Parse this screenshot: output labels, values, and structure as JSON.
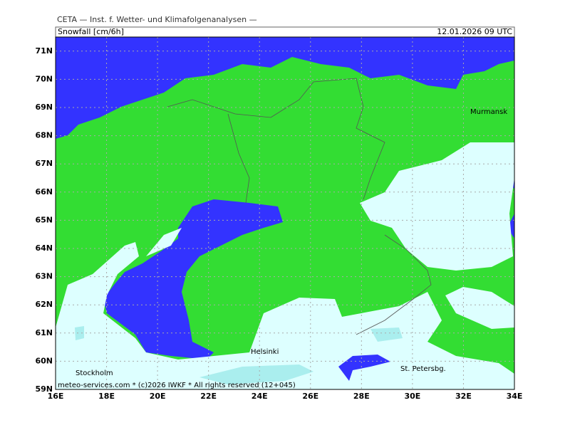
{
  "header": {
    "title": "CETA — Inst. f. Wetter- und Klimafolgenanalysen —",
    "parameter": "Snowfall [cm/6h]",
    "valid_time": "12.01.2026 09 UTC"
  },
  "map": {
    "xlim": [
      16,
      34
    ],
    "ylim": [
      59,
      71.5
    ],
    "xticks": [
      {
        "value": 16,
        "label": "16E"
      },
      {
        "value": 18,
        "label": "18E"
      },
      {
        "value": 20,
        "label": "20E"
      },
      {
        "value": 22,
        "label": "22E"
      },
      {
        "value": 24,
        "label": "24E"
      },
      {
        "value": 26,
        "label": "26E"
      },
      {
        "value": 28,
        "label": "28E"
      },
      {
        "value": 30,
        "label": "30E"
      },
      {
        "value": 32,
        "label": "32E"
      },
      {
        "value": 34,
        "label": "34E"
      }
    ],
    "yticks": [
      {
        "value": 59,
        "label": "59N"
      },
      {
        "value": 60,
        "label": "60N"
      },
      {
        "value": 61,
        "label": "61N"
      },
      {
        "value": 62,
        "label": "62N"
      },
      {
        "value": 63,
        "label": "63N"
      },
      {
        "value": 64,
        "label": "64N"
      },
      {
        "value": 65,
        "label": "65N"
      },
      {
        "value": 66,
        "label": "66N"
      },
      {
        "value": 67,
        "label": "67N"
      },
      {
        "value": 68,
        "label": "68N"
      },
      {
        "value": 69,
        "label": "69N"
      },
      {
        "value": 70,
        "label": "70N"
      },
      {
        "value": 71,
        "label": "71N"
      }
    ],
    "cities": [
      "Murmansk",
      "Helsinki",
      "Stockholm",
      "St. Petersbg."
    ]
  },
  "footer": "meteo-services.com * (c)2026 IWKF * All rights reserved (12+045)"
}
